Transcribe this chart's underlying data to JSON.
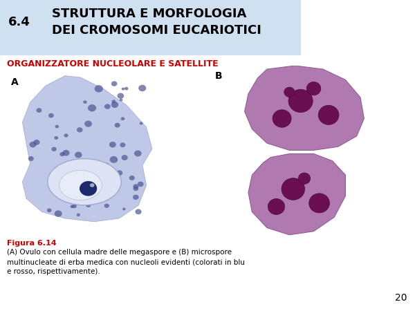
{
  "bg_color": "#ffffff",
  "header_bg": "#cfe0f0",
  "header_number": "6.4",
  "header_title_line1": "STRUTTURA E MORFOLOGIA",
  "header_title_line2": "DEI CROMOSOMI EUCARIOTICI",
  "subtitle": "ORGANIZZATORE NUCLEOLARE E SATELLITE",
  "subtitle_color": "#cc0000",
  "label_a": "A",
  "label_b": "B",
  "caption_title": "Figura 6.14",
  "caption_title_color": "#cc0000",
  "caption_text": "(A) Ovulo con cellula madre delle megaspore e (B) microspore\nmultinucleate di erba medica con nucleoli evidenti (colorati in blu\ne rosso, rispettivamente).",
  "page_number": "20",
  "header_number_fontsize": 13,
  "header_title_fontsize": 13,
  "subtitle_fontsize": 9,
  "caption_title_fontsize": 8,
  "caption_text_fontsize": 7.5,
  "label_fontsize": 10,
  "page_number_fontsize": 10
}
